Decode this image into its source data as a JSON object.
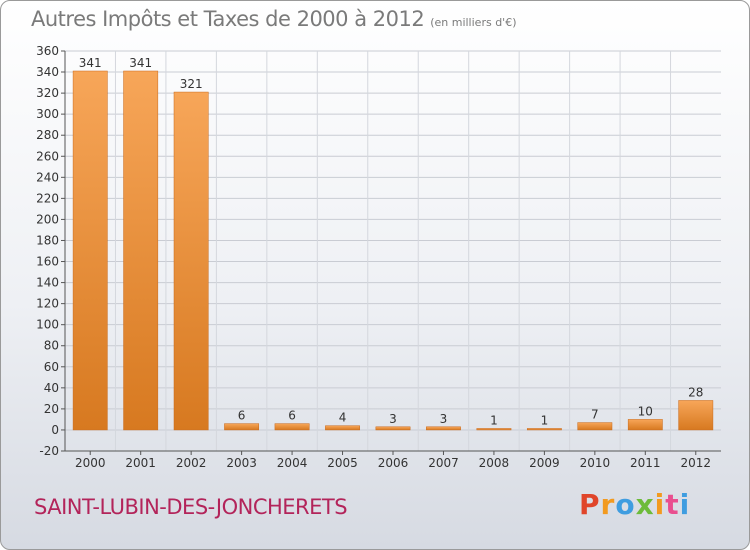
{
  "header": {
    "title": "Autres Impôts et Taxes de 2000 à 2012",
    "subtitle": "(en milliers d'€)"
  },
  "footer": {
    "commune": "SAINT-LUBIN-DES-JONCHERETS",
    "logo_text": "Proxiti"
  },
  "colors": {
    "bar_light": "#f7a659",
    "bar_dark": "#d77920",
    "title": "#7a7a7a",
    "commune": "#b3245a"
  },
  "chart_data": {
    "type": "bar",
    "title": "Autres Impôts et Taxes de 2000 à 2012",
    "subtitle": "(en milliers d'€)",
    "categories": [
      "2000",
      "2001",
      "2002",
      "2003",
      "2004",
      "2005",
      "2006",
      "2007",
      "2008",
      "2009",
      "2010",
      "2011",
      "2012"
    ],
    "values": [
      341,
      341,
      321,
      6,
      6,
      4,
      3,
      3,
      1,
      1,
      7,
      10,
      28
    ],
    "ylim": [
      -20,
      360
    ],
    "yticks": [
      -20,
      0,
      20,
      40,
      60,
      80,
      100,
      120,
      140,
      160,
      180,
      200,
      220,
      240,
      260,
      280,
      300,
      320,
      340,
      360
    ],
    "grid": true,
    "legend": "none"
  }
}
